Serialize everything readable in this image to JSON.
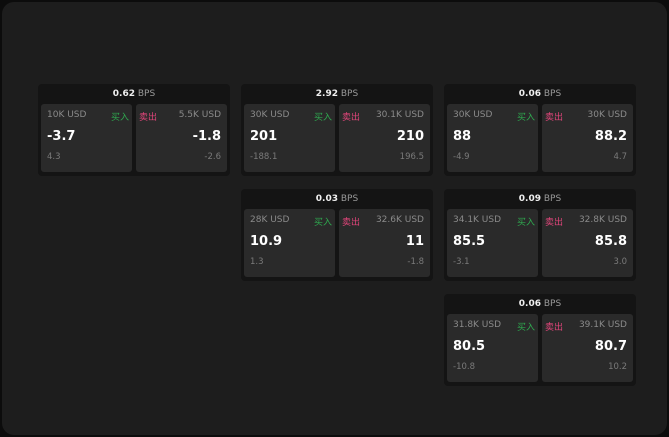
{
  "unit": "BPS",
  "colors": {
    "buy": "#2fa84f",
    "sell": "#e0457a"
  },
  "widgets": [
    {
      "spread": "0.62",
      "buy": {
        "size": "10K USD",
        "label": "买入",
        "price": "-3.7",
        "change": "4.3"
      },
      "sell": {
        "size": "5.5K USD",
        "label": "卖出",
        "price": "-1.8",
        "change": "-2.6"
      }
    },
    {
      "spread": "2.92",
      "buy": {
        "size": "30K USD",
        "label": "买入",
        "price": "201",
        "change": "-188.1"
      },
      "sell": {
        "size": "30.1K USD",
        "label": "卖出",
        "price": "210",
        "change": "196.5"
      }
    },
    {
      "spread": "0.06",
      "buy": {
        "size": "30K USD",
        "label": "买入",
        "price": "88",
        "change": "-4.9"
      },
      "sell": {
        "size": "30K USD",
        "label": "卖出",
        "price": "88.2",
        "change": "4.7"
      }
    },
    {
      "spread": "0.03",
      "buy": {
        "size": "28K USD",
        "label": "买入",
        "price": "10.9",
        "change": "1.3"
      },
      "sell": {
        "size": "32.6K USD",
        "label": "卖出",
        "price": "11",
        "change": "-1.8"
      }
    },
    {
      "spread": "0.09",
      "buy": {
        "size": "34.1K USD",
        "label": "买入",
        "price": "85.5",
        "change": "-3.1"
      },
      "sell": {
        "size": "32.8K USD",
        "label": "卖出",
        "price": "85.8",
        "change": "3.0"
      }
    },
    {
      "spread": "0.06",
      "buy": {
        "size": "31.8K USD",
        "label": "买入",
        "price": "80.5",
        "change": "-10.8"
      },
      "sell": {
        "size": "39.1K USD",
        "label": "卖出",
        "price": "80.7",
        "change": "10.2"
      }
    }
  ]
}
